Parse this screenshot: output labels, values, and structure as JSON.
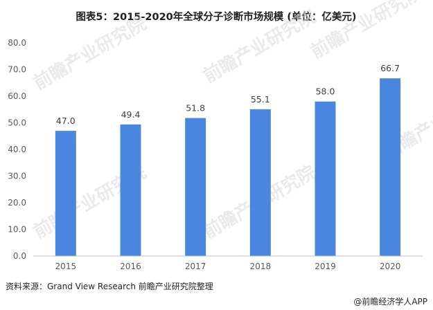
{
  "chart_data": {
    "type": "bar",
    "title": "图表5：2015-2020年全球分子诊断市场规模 (单位：亿美元)",
    "categories": [
      "2015",
      "2016",
      "2017",
      "2018",
      "2019",
      "2020"
    ],
    "values": [
      47.0,
      49.4,
      51.8,
      55.1,
      58.0,
      66.7
    ],
    "value_labels": [
      "47.0",
      "49.4",
      "51.8",
      "55.1",
      "58.0",
      "66.7"
    ],
    "ylim": [
      0,
      80
    ],
    "yticks": [
      "0.0",
      "10.0",
      "20.0",
      "30.0",
      "40.0",
      "50.0",
      "60.0",
      "70.0",
      "80.0"
    ],
    "xlabel": "",
    "ylabel": "",
    "bar_color": "#4a86e0",
    "legend": "none",
    "grid": false
  },
  "source": "资料来源：Grand View Research 前瞻产业研究院整理",
  "footer": "@前瞻经济学人APP",
  "watermark": "前瞻产业研究院"
}
